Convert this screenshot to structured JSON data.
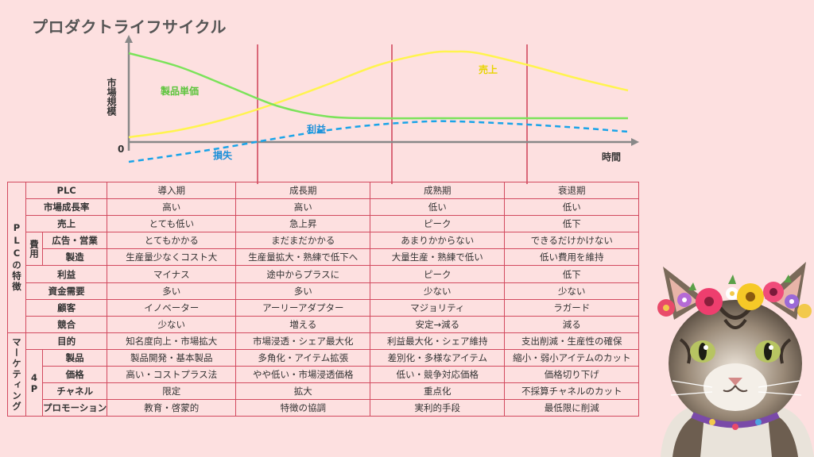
{
  "title": "プロダクトライフサイクル",
  "chart_data": {
    "type": "line",
    "ylabel": "市場規模",
    "xlabel": "時間",
    "origin_label": "0",
    "series": [
      {
        "name": "売上",
        "color": "#fff44f",
        "style": "solid",
        "points": [
          [
            0,
            6
          ],
          [
            0.1,
            15
          ],
          [
            0.2,
            30
          ],
          [
            0.3,
            50
          ],
          [
            0.4,
            73
          ],
          [
            0.5,
            97
          ],
          [
            0.6,
            112
          ],
          [
            0.65,
            114
          ],
          [
            0.7,
            112
          ],
          [
            0.8,
            97
          ],
          [
            0.9,
            80
          ],
          [
            1.0,
            65
          ]
        ]
      },
      {
        "name": "製品単価",
        "color": "#7be35a",
        "style": "solid",
        "points": [
          [
            0,
            112
          ],
          [
            0.1,
            95
          ],
          [
            0.2,
            70
          ],
          [
            0.3,
            45
          ],
          [
            0.4,
            32
          ],
          [
            0.5,
            30
          ],
          [
            0.6,
            30
          ],
          [
            0.7,
            30
          ],
          [
            0.8,
            30
          ],
          [
            0.9,
            30
          ],
          [
            1.0,
            30
          ]
        ]
      },
      {
        "name": "利益",
        "color": "#1aa4e8",
        "style": "dashed",
        "points": [
          [
            0,
            -25
          ],
          [
            0.1,
            -16
          ],
          [
            0.2,
            -6
          ],
          [
            0.3,
            5
          ],
          [
            0.4,
            15
          ],
          [
            0.5,
            22
          ],
          [
            0.6,
            26
          ],
          [
            0.65,
            26
          ],
          [
            0.7,
            25
          ],
          [
            0.8,
            22
          ],
          [
            0.9,
            18
          ],
          [
            1.0,
            13
          ]
        ]
      }
    ],
    "labels": {
      "sales": "売上",
      "price": "製品単価",
      "profit": "利益",
      "loss": "損失"
    }
  },
  "table": {
    "group_plc": "PLCの特徴",
    "group_cost": "費用",
    "group_marketing": "マーケティング",
    "group_4p": "4P",
    "header": {
      "label": "PLC",
      "stages": [
        "導入期",
        "成長期",
        "成熟期",
        "衰退期"
      ]
    },
    "plc_rows": [
      {
        "label": "市場成長率",
        "values": [
          "高い",
          "高い",
          "低い",
          "低い"
        ]
      },
      {
        "label": "売上",
        "values": [
          "とても低い",
          "急上昇",
          "ピーク",
          "低下"
        ]
      }
    ],
    "cost_rows": [
      {
        "label": "広告・営業",
        "values": [
          "とてもかかる",
          "まだまだかかる",
          "あまりかからない",
          "できるだけかけない"
        ]
      },
      {
        "label": "製造",
        "values": [
          "生産量少なくコスト大",
          "生産量拡大・熟練で低下へ",
          "大量生産・熟練で低い",
          "低い費用を維持"
        ]
      }
    ],
    "plc_rows2": [
      {
        "label": "利益",
        "values": [
          "マイナス",
          "途中からプラスに",
          "ピーク",
          "低下"
        ]
      },
      {
        "label": "資金需要",
        "values": [
          "多い",
          "多い",
          "少ない",
          "少ない"
        ]
      },
      {
        "label": "顧客",
        "values": [
          "イノベーター",
          "アーリーアダプター",
          "マジョリティ",
          "ラガード"
        ]
      },
      {
        "label": "競合",
        "values": [
          "少ない",
          "増える",
          "安定→減る",
          "減る"
        ]
      }
    ],
    "mkt_purpose": {
      "label": "目的",
      "values": [
        "知名度向上・市場拡大",
        "市場浸透・シェア最大化",
        "利益最大化・シェア維持",
        "支出削減・生産性の確保"
      ]
    },
    "p4_rows": [
      {
        "label": "製品",
        "values": [
          "製品開発・基本製品",
          "多角化・アイテム拡張",
          "差別化・多様なアイテム",
          "縮小・弱小アイテムのカット"
        ]
      },
      {
        "label": "価格",
        "values": [
          "高い・コストプラス法",
          "やや低い・市場浸透価格",
          "低い・競争対応価格",
          "価格切り下げ"
        ]
      },
      {
        "label": "チャネル",
        "values": [
          "限定",
          "拡大",
          "重点化",
          "不採算チャネルのカット"
        ]
      },
      {
        "label": "プロモーション",
        "values": [
          "教育・啓蒙的",
          "特徴の協調",
          "実利的手段",
          "最低限に削減"
        ]
      }
    ]
  }
}
